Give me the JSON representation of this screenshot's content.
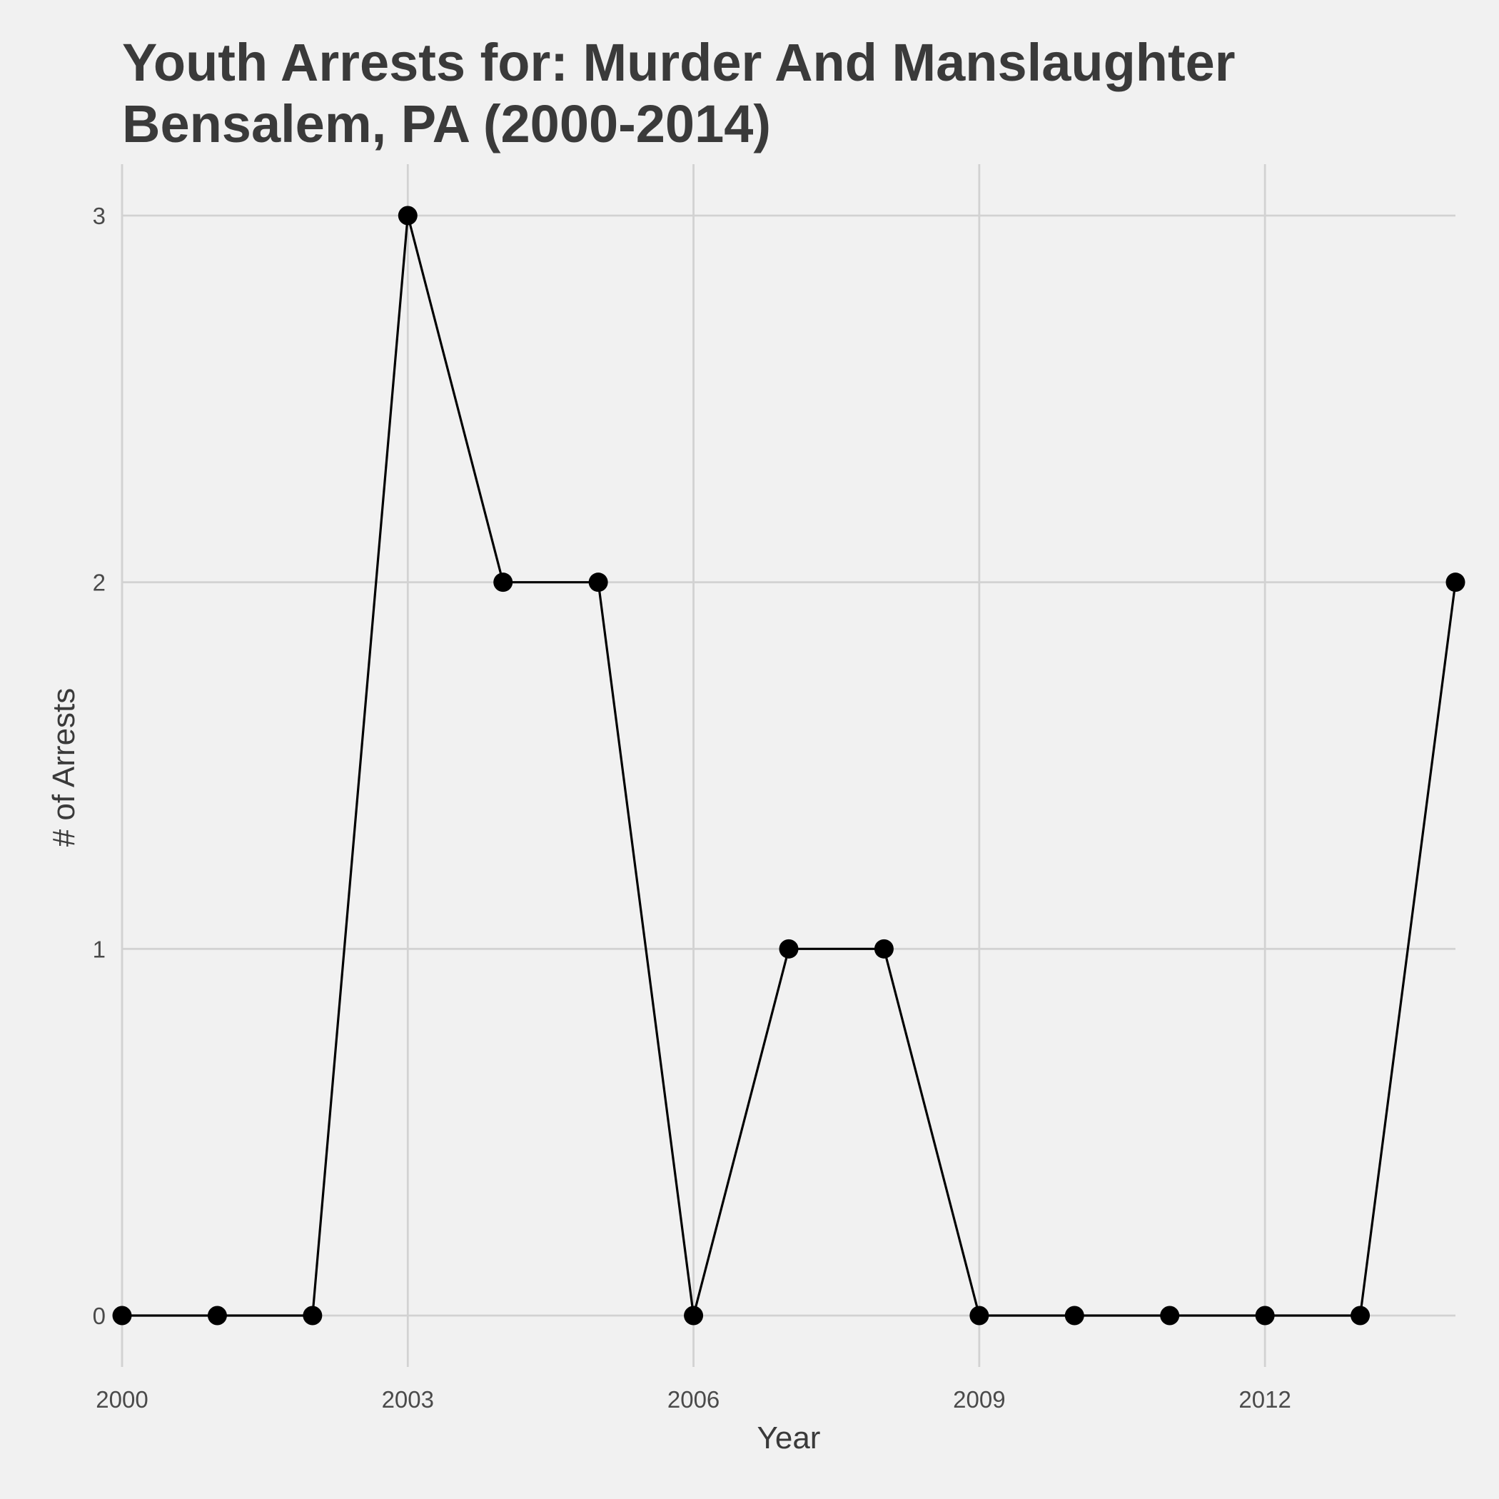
{
  "chart_data": {
    "type": "line",
    "title": "Youth Arrests for: Murder And Manslaughter",
    "subtitle": "Bensalem, PA (2000-2014)",
    "xlabel": "Year",
    "ylabel": "# of Arrests",
    "x": [
      2000,
      2001,
      2002,
      2003,
      2004,
      2005,
      2006,
      2007,
      2008,
      2009,
      2010,
      2011,
      2012,
      2013,
      2014
    ],
    "series": [
      {
        "values": [
          0,
          0,
          0,
          3,
          2,
          2,
          0,
          1,
          1,
          0,
          0,
          0,
          0,
          0,
          2
        ],
        "color": "#000000"
      }
    ],
    "xlim": [
      2000,
      2014
    ],
    "ylim": [
      0,
      3
    ],
    "x_ticks": [
      "2000",
      "2003",
      "2006",
      "2009",
      "2012"
    ],
    "y_ticks": [
      "0",
      "1",
      "2",
      "3"
    ],
    "grid": true,
    "legend": "none",
    "colors": {
      "background": "#f1f1f1",
      "grid": "#d2d2d2",
      "text": "#3a3a3a"
    }
  }
}
